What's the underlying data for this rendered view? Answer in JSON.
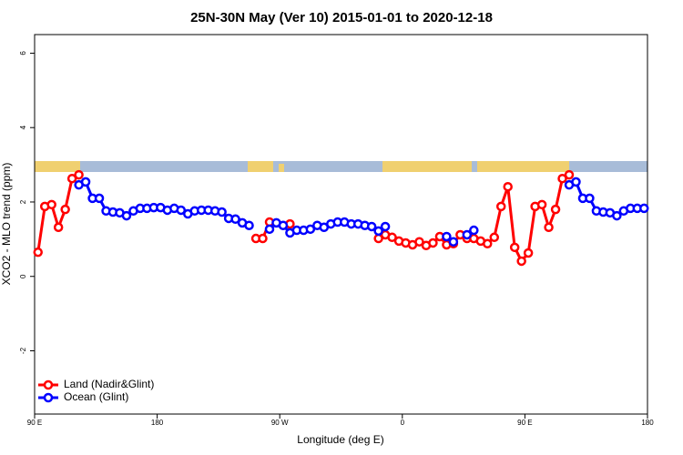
{
  "chart_data": {
    "type": "line",
    "title": "25N-30N May (Ver 10)   2015-01-01 to 2020-12-18",
    "x_label": "Longitude (deg E)",
    "y_label": "XCO2 - MLO trend (ppm)",
    "x": [
      92.5,
      97.5,
      102.5,
      107.5,
      112.5,
      117.5,
      122.5,
      127.5,
      132.5,
      137.5,
      142.5,
      147.5,
      152.5,
      157.5,
      162.5,
      167.5,
      172.5,
      177.5,
      182.5,
      187.5,
      192.5,
      197.5,
      202.5,
      207.5,
      212.5,
      217.5,
      222.5,
      227.5,
      232.5,
      237.5,
      242.5,
      247.5,
      252.5,
      257.5,
      262.5,
      267.5,
      272.5,
      277.5,
      282.5,
      287.5,
      292.5,
      297.5,
      302.5,
      307.5,
      312.5,
      317.5,
      322.5,
      327.5,
      332.5,
      337.5,
      342.5,
      347.5,
      352.5,
      357.5,
      362.5,
      367.5,
      372.5,
      377.5,
      382.5,
      387.5,
      392.5,
      397.5,
      402.5,
      407.5,
      412.5,
      417.5,
      422.5,
      427.5,
      432.5,
      437.5,
      442.5,
      447.5,
      452.5,
      457.5,
      462.5,
      467.5,
      472.5,
      477.5,
      482.5,
      487.5,
      492.5,
      497.5,
      502.5,
      507.5,
      512.5,
      517.5,
      522.5,
      527.5,
      532.5,
      537.5
    ],
    "series": [
      {
        "name": "Land (Nadir&Glint)",
        "color": "#ff0000",
        "values": [
          0.65,
          1.88,
          1.93,
          1.32,
          1.8,
          2.63,
          2.73,
          null,
          null,
          null,
          null,
          null,
          null,
          null,
          null,
          null,
          null,
          null,
          null,
          null,
          null,
          null,
          null,
          null,
          null,
          null,
          null,
          null,
          null,
          null,
          null,
          null,
          1.02,
          1.02,
          1.46,
          null,
          null,
          1.41,
          null,
          null,
          null,
          null,
          null,
          null,
          null,
          null,
          null,
          null,
          null,
          null,
          1.02,
          1.12,
          1.05,
          0.95,
          0.9,
          0.85,
          0.93,
          0.83,
          0.9,
          1.07,
          0.85,
          0.88,
          1.12,
          1.02,
          1.02,
          0.95,
          0.88,
          1.05,
          1.88,
          2.41,
          0.78,
          0.41,
          0.63,
          1.88,
          1.93,
          1.32,
          1.8,
          2.63,
          2.73,
          null,
          null,
          null,
          null,
          null,
          null,
          null,
          null,
          null,
          null,
          null
        ]
      },
      {
        "name": "Ocean (Glint)",
        "color": "#0000ff",
        "values": [
          null,
          null,
          null,
          null,
          null,
          null,
          2.46,
          2.54,
          2.1,
          2.1,
          1.76,
          1.73,
          1.71,
          1.63,
          1.76,
          1.83,
          1.83,
          1.85,
          1.85,
          1.78,
          1.83,
          1.78,
          1.68,
          1.76,
          1.78,
          1.78,
          1.76,
          1.73,
          1.56,
          1.54,
          1.44,
          1.37,
          null,
          null,
          1.27,
          1.44,
          1.37,
          1.17,
          1.24,
          1.24,
          1.27,
          1.37,
          1.32,
          1.41,
          1.46,
          1.46,
          1.41,
          1.41,
          1.37,
          1.34,
          1.22,
          1.34,
          null,
          null,
          null,
          null,
          null,
          null,
          null,
          null,
          1.07,
          0.93,
          null,
          1.12,
          1.24,
          null,
          null,
          null,
          null,
          null,
          null,
          null,
          null,
          null,
          null,
          null,
          null,
          null,
          2.46,
          2.54,
          2.1,
          2.1,
          1.76,
          1.73,
          1.71,
          1.63,
          1.76,
          1.83,
          1.83,
          1.83
        ]
      }
    ],
    "xlim": [
      90,
      540
    ],
    "xticks": [
      {
        "value": 90,
        "label": "90 E"
      },
      180,
      {
        "value": 270,
        "label": "90 W"
      },
      {
        "value": 360,
        "label": "0"
      },
      {
        "value": 450,
        "label": "90 E"
      },
      {
        "value": 540,
        "label": "180"
      }
    ],
    "ylim": [
      -3.7,
      6.5
    ],
    "yticks": [
      -2,
      0,
      2,
      4,
      6
    ],
    "legend": "bottomleft"
  }
}
